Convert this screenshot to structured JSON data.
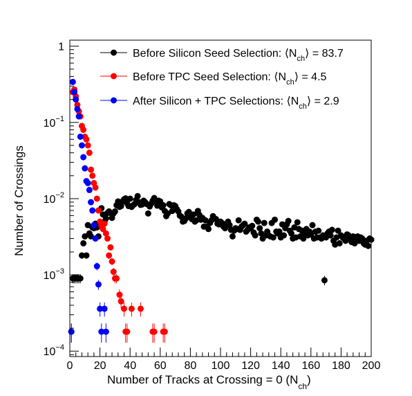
{
  "chart_data": {
    "type": "scatter",
    "title": "",
    "xlabel_main": "Number of Tracks at Crossing = 0 (N",
    "xlabel_sub": "ch",
    "xlabel_close": ")",
    "ylabel": "Number of Crossings",
    "xlim": [
      0,
      200
    ],
    "ylim": [
      8.5e-05,
      1.2
    ],
    "y_scale": "log",
    "grid": false,
    "legend_position": "top-right",
    "x_ticks": [
      0,
      20,
      40,
      60,
      80,
      100,
      120,
      140,
      160,
      180,
      200
    ],
    "y_tick_labels": [
      {
        "value": 1,
        "base": "1",
        "exp": ""
      },
      {
        "value": 0.1,
        "base": "10",
        "exp": "−1"
      },
      {
        "value": 0.01,
        "base": "10",
        "exp": "−2"
      },
      {
        "value": 0.001,
        "base": "10",
        "exp": "−3"
      },
      {
        "value": 0.0001,
        "base": "10",
        "exp": "−4"
      }
    ],
    "series": [
      {
        "name_main": "Before Silicon Seed Selection: ⟨N",
        "name_sub": "ch",
        "name_tail": "⟩ = 83.7",
        "color": "#000000",
        "x": [
          1,
          2,
          3,
          4,
          5,
          6,
          7,
          8,
          9,
          10,
          11,
          12,
          13,
          14,
          15,
          16,
          17,
          18,
          19,
          20,
          21,
          22,
          23,
          24,
          25,
          26,
          27,
          28,
          29,
          30,
          31,
          32,
          33,
          34,
          35,
          36,
          37,
          38,
          39,
          40,
          41,
          42,
          43,
          44,
          45,
          46,
          47,
          48,
          49,
          50,
          51,
          52,
          53,
          54,
          55,
          56,
          57,
          58,
          59,
          60,
          61,
          62,
          63,
          64,
          65,
          66,
          67,
          68,
          69,
          70,
          71,
          72,
          73,
          74,
          75,
          76,
          77,
          78,
          79,
          80,
          81,
          82,
          83,
          84,
          85,
          86,
          87,
          88,
          89,
          90,
          91,
          92,
          93,
          94,
          95,
          96,
          97,
          98,
          99,
          100,
          101,
          102,
          103,
          104,
          105,
          106,
          107,
          108,
          109,
          110,
          111,
          112,
          113,
          114,
          115,
          116,
          117,
          118,
          119,
          120,
          121,
          122,
          123,
          124,
          125,
          126,
          127,
          128,
          129,
          130,
          131,
          132,
          133,
          134,
          135,
          136,
          137,
          138,
          139,
          140,
          141,
          142,
          143,
          144,
          145,
          146,
          147,
          148,
          149,
          150,
          151,
          152,
          153,
          154,
          155,
          156,
          157,
          158,
          159,
          160,
          161,
          162,
          163,
          164,
          165,
          166,
          167,
          168,
          169,
          170,
          171,
          172,
          173,
          174,
          175,
          176,
          177,
          178,
          179,
          180,
          181,
          182,
          183,
          184,
          185,
          186,
          187,
          188,
          189,
          190,
          191,
          192,
          193,
          194,
          195,
          196,
          197,
          198,
          199,
          200
        ],
        "y": [
          0.00018,
          0.0009,
          0.0009,
          0.0009,
          0.0009,
          0.0009,
          0.0009,
          0.0018,
          0.0026,
          0.0032,
          0.0018,
          0.0045,
          0.0035,
          0.0032,
          0.0042,
          0.0041,
          0.0047,
          0.0042,
          0.0032,
          0.0045,
          0.0075,
          0.0062,
          0.005,
          0.0055,
          0.0065,
          0.0068,
          0.0065,
          0.0056,
          0.0064,
          0.0068,
          0.0082,
          0.0092,
          0.0078,
          0.008,
          0.0092,
          0.0098,
          0.0101,
          0.0087,
          0.008,
          0.01,
          0.0078,
          0.0082,
          0.0085,
          0.0096,
          0.0108,
          0.009,
          0.0083,
          0.0084,
          0.0094,
          0.009,
          0.0085,
          0.0064,
          0.0079,
          0.0086,
          0.0094,
          0.0102,
          0.0092,
          0.0081,
          0.0094,
          0.0092,
          0.0077,
          0.0082,
          0.0069,
          0.0059,
          0.0064,
          0.0085,
          0.0082,
          0.0069,
          0.0082,
          0.008,
          0.0073,
          0.0068,
          0.006,
          0.0058,
          0.005,
          0.0051,
          0.0055,
          0.0064,
          0.0067,
          0.0059,
          0.0054,
          0.0062,
          0.005,
          0.0052,
          0.0069,
          0.0061,
          0.0053,
          0.0056,
          0.0043,
          0.0052,
          0.0043,
          0.004,
          0.0048,
          0.0052,
          0.0059,
          0.0055,
          0.0054,
          0.0047,
          0.0046,
          0.005,
          0.0048,
          0.0043,
          0.0041,
          0.0046,
          0.005,
          0.0045,
          0.0039,
          0.0032,
          0.0038,
          0.0041,
          0.004,
          0.0052,
          0.0039,
          0.0043,
          0.0045,
          0.0047,
          0.0037,
          0.0039,
          0.0042,
          0.0041,
          0.0044,
          0.0036,
          0.0033,
          0.0053,
          0.005,
          0.0041,
          0.0035,
          0.003,
          0.0048,
          0.0033,
          0.0037,
          0.0033,
          0.0032,
          0.0048,
          0.0031,
          0.0053,
          0.0037,
          0.0035,
          0.0037,
          0.0031,
          0.0046,
          0.0033,
          0.0041,
          0.0046,
          0.0051,
          0.0038,
          0.0035,
          0.003,
          0.0042,
          0.0031,
          0.0049,
          0.004,
          0.0032,
          0.0038,
          0.003,
          0.0034,
          0.004,
          0.0033,
          0.0037,
          0.0034,
          0.0045,
          0.003,
          0.0037,
          0.0031,
          0.0038,
          0.0031,
          0.003,
          0.0033,
          0.00085,
          0.0031,
          0.0035,
          0.0037,
          0.0033,
          0.0039,
          0.0028,
          0.0025,
          0.0031,
          0.0038,
          0.0026,
          0.0033,
          0.0031,
          0.003,
          0.0028,
          0.0034,
          0.0033,
          0.003,
          0.0027,
          0.0032,
          0.0026,
          0.0029,
          0.0032,
          0.0028,
          0.0031,
          0.003,
          0.0026,
          0.0025,
          0.0028,
          0.0024,
          0.003,
          0.0029
        ]
      },
      {
        "name_main": "Before TPC Seed Selection: ⟨N",
        "name_sub": "ch",
        "name_tail": "⟩ = 4.5",
        "color": "#ff0000",
        "x": [
          2,
          3,
          4,
          5,
          6,
          7,
          8,
          9,
          10,
          11,
          12,
          13,
          14,
          15,
          16,
          17,
          18,
          19,
          20,
          21,
          22,
          23,
          24,
          25,
          26,
          27,
          28,
          29,
          30,
          31,
          33,
          34,
          36,
          37,
          38,
          41,
          47,
          55,
          56,
          62,
          63
        ],
        "y": [
          0.25,
          0.27,
          0.22,
          0.17,
          0.14,
          0.12,
          0.09,
          0.08,
          0.065,
          0.06,
          0.05,
          0.04,
          0.024,
          0.02,
          0.016,
          0.014,
          0.01,
          0.007,
          0.005,
          0.0044,
          0.004,
          0.0047,
          0.0035,
          0.003,
          0.0018,
          0.0023,
          0.0015,
          0.0011,
          0.0009,
          0.0009,
          0.00055,
          0.00045,
          0.00036,
          0.00018,
          0.00018,
          0.00036,
          0.00036,
          0.00018,
          0.00018,
          0.00018,
          0.00018
        ]
      },
      {
        "name_main": "After Silicon + TPC Selections: ⟨N",
        "name_sub": "ch",
        "name_tail": "⟩ = 2.9",
        "color": "#0000ff",
        "x": [
          1,
          2,
          3,
          4,
          5,
          6,
          7,
          8,
          9,
          10,
          11,
          12,
          13,
          14,
          15,
          16,
          17,
          18,
          19,
          20,
          21,
          23,
          24
        ],
        "y": [
          0.00018,
          0.34,
          0.25,
          0.2,
          0.15,
          0.12,
          0.065,
          0.05,
          0.035,
          0.025,
          0.017,
          0.016,
          0.013,
          0.009,
          0.007,
          0.0045,
          0.003,
          0.0013,
          0.00075,
          0.00036,
          0.00018,
          0.00036,
          0.00018
        ]
      }
    ]
  }
}
